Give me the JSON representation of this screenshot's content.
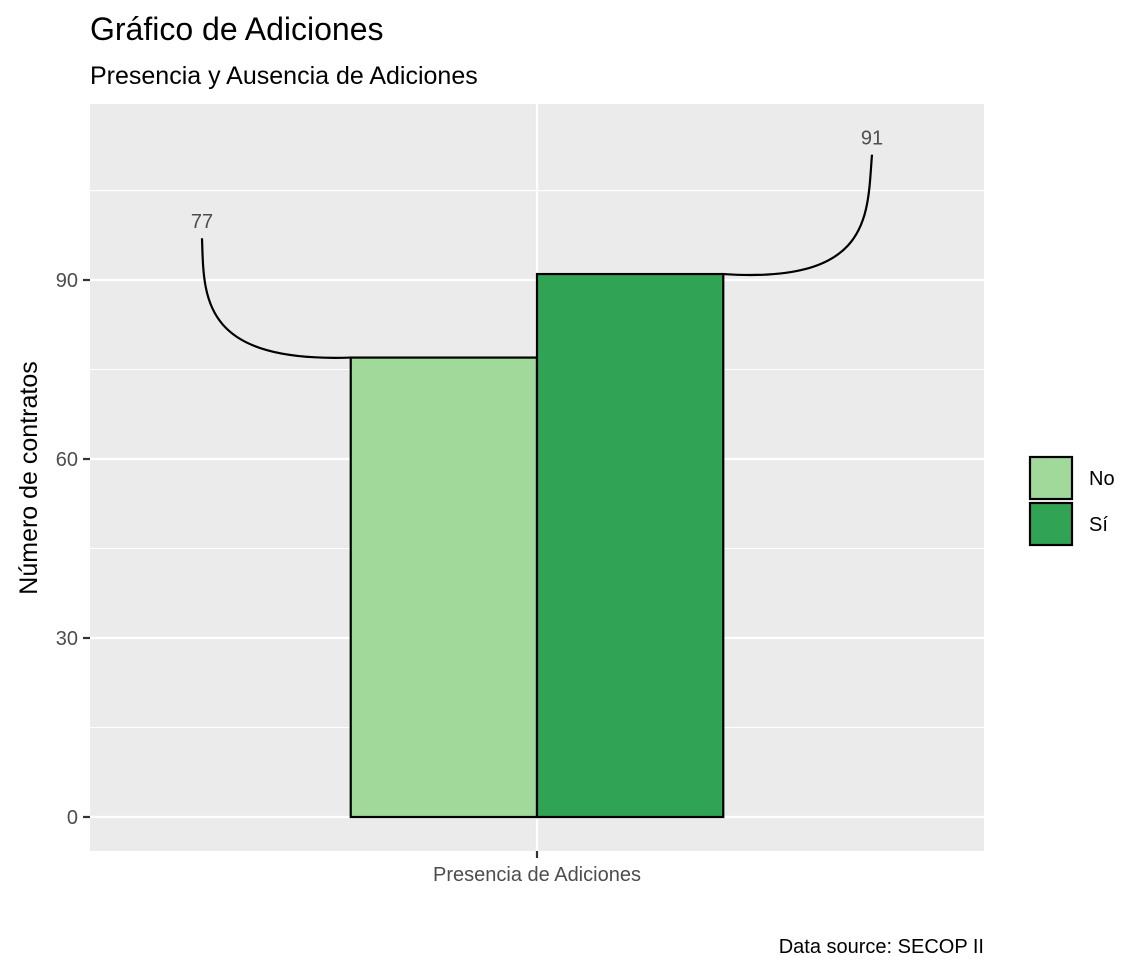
{
  "chart_data": {
    "type": "bar",
    "title": "Gráfico de Adiciones",
    "subtitle": "Presencia y Ausencia de Adiciones",
    "xlabel": "",
    "ylabel": "Número de contratos",
    "categories": [
      "Presencia de Adiciones"
    ],
    "series": [
      {
        "name": "No",
        "values": [
          77
        ],
        "color": "#a1d99b"
      },
      {
        "name": "Sí",
        "values": [
          91
        ],
        "color": "#31a354"
      }
    ],
    "data_labels": [
      "77",
      "91"
    ],
    "yticks": [
      0,
      30,
      60,
      90
    ],
    "ytick_labels": [
      "0",
      "30",
      "60",
      "90"
    ],
    "ylim": [
      -5.7,
      119.5
    ],
    "grid": true,
    "panel_background": "#ebebeb",
    "legend_position": "right",
    "caption": "Data source: SECOP II"
  }
}
